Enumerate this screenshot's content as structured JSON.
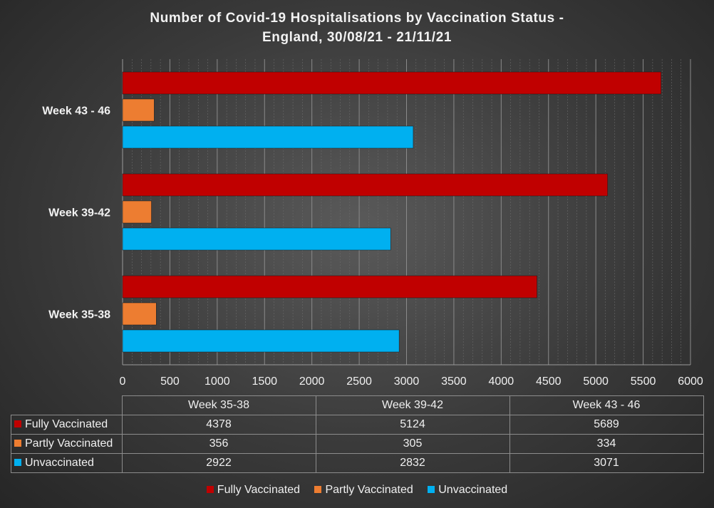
{
  "chart_data": {
    "type": "bar",
    "orientation": "horizontal",
    "title_lines": [
      "Number of Covid-19 Hospitalisations by Vaccination Status -",
      "England, 30/08/21  - 21/11/21"
    ],
    "categories": [
      "Week 35-38",
      "Week 39-42",
      "Week 43 - 46"
    ],
    "series": [
      {
        "name": "Fully Vaccinated",
        "color": "#c00000",
        "values": [
          4378,
          5124,
          5689
        ]
      },
      {
        "name": "Partly Vaccinated",
        "color": "#ed7d31",
        "values": [
          356,
          305,
          334
        ]
      },
      {
        "name": "Unvaccinated",
        "color": "#00b0f0",
        "values": [
          2922,
          2832,
          3071
        ]
      }
    ],
    "xlim": [
      0,
      6000
    ],
    "xticks": [
      0,
      500,
      1000,
      1500,
      2000,
      2500,
      3000,
      3500,
      4000,
      4500,
      5000,
      5500,
      6000
    ],
    "grid": true,
    "legend_position": "bottom",
    "data_table": true
  }
}
